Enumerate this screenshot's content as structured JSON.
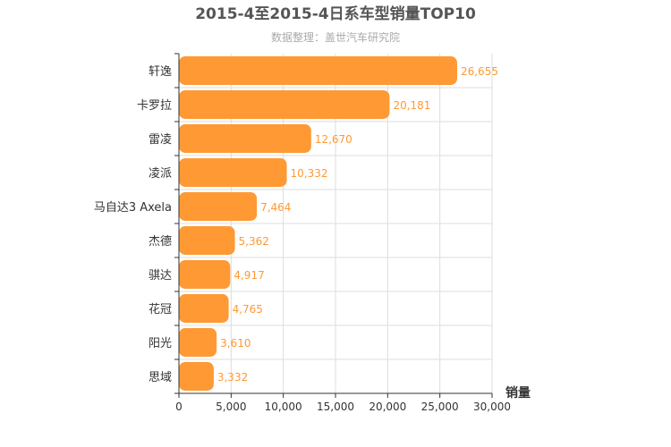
{
  "chart_data": {
    "type": "bar",
    "orientation": "horizontal",
    "title": "2015-4至2015-4日系车型销量TOP10",
    "subtitle": "数据整理：盖世汽车研究院",
    "xlabel": "销量",
    "ylabel": "",
    "categories": [
      "轩逸",
      "卡罗拉",
      "雷凌",
      "凌派",
      "马自达3 Axela",
      "杰德",
      "骐达",
      "花冠",
      "阳光",
      "思域"
    ],
    "values": [
      26655,
      20181,
      12670,
      10332,
      7464,
      5362,
      4917,
      4765,
      3610,
      3332
    ],
    "value_labels": [
      "26,655",
      "20,181",
      "12,670",
      "10,332",
      "7,464",
      "5,362",
      "4,917",
      "4,765",
      "3,610",
      "3,332"
    ],
    "xlim": [
      0,
      30000
    ],
    "x_ticks": [
      0,
      5000,
      10000,
      15000,
      20000,
      25000,
      30000
    ],
    "x_tick_labels": [
      "0",
      "5,000",
      "10,000",
      "15,000",
      "20,000",
      "25,000",
      "30,000"
    ],
    "grid": true,
    "legend": "none",
    "bar_color": "#ff9933",
    "label_color": "#ff9933",
    "grid_color": "#dddddd",
    "axis_color": "#333333"
  }
}
